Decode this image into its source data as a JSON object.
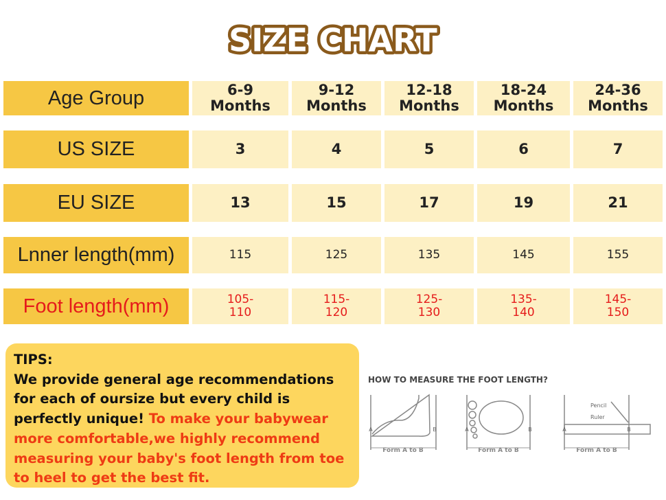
{
  "header": {
    "title": "SIZE CHART"
  },
  "table": {
    "rows": [
      [
        "Age Group",
        "6-9 Months",
        "9-12 Months",
        "12-18 Months",
        "18-24 Months",
        "24-36 Months"
      ],
      [
        "US SIZE",
        "3",
        "4",
        "5",
        "6",
        "7"
      ],
      [
        "EU SIZE",
        "13",
        "15",
        "17",
        "19",
        "21"
      ],
      [
        "Lnner length(mm)",
        "115",
        "125",
        "135",
        "145",
        "155"
      ],
      [
        "Foot length(mm)",
        "105-110",
        "115-120",
        "125-130",
        "135-140",
        "145-150"
      ]
    ]
  },
  "tips": {
    "title": "TIPS:",
    "text": "We provide general age recommendations for each of oursize but every child is perfectly unique!",
    "highlight": "To make your babywear more comfortable,we highly recommend measuring your baby's foot length from toe to heel to get the best fit."
  },
  "diagram": {
    "title": "HOW TO MEASURE THE FOOT LENGTH?",
    "captions": [
      "Form A to B",
      "Form A to B",
      "Form A to B"
    ],
    "points": [
      "A",
      "B"
    ],
    "tools": [
      "Pencil",
      "Ruler"
    ]
  }
}
